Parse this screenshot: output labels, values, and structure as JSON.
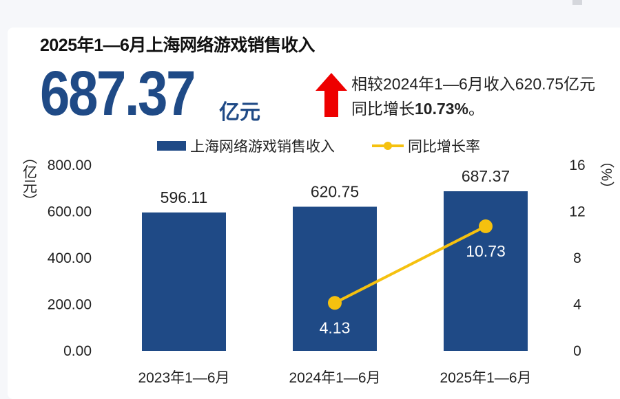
{
  "title": "2025年1—6月上海网络游戏销售收入",
  "headline": {
    "value": "687.37",
    "unit": "亿元"
  },
  "comparison": {
    "line1": "相较2024年1—6月收入620.75亿元",
    "line2_prefix": "同比增长",
    "line2_value": "10.73%",
    "line2_suffix": "。"
  },
  "colors": {
    "bar": "#1f4a86",
    "line": "#f5c10f",
    "arrow": "#ee0000"
  },
  "chart_data": {
    "type": "bar+line",
    "categories": [
      "2023年1—6月",
      "2024年1—6月",
      "2025年1—6月"
    ],
    "series": [
      {
        "name": "上海网络游戏销售收入",
        "type": "bar",
        "axis": "left",
        "values": [
          596.11,
          620.75,
          687.37
        ],
        "labels": [
          "596.11",
          "620.75",
          "687.37"
        ]
      },
      {
        "name": "同比增长率",
        "type": "line",
        "axis": "right",
        "values": [
          null,
          4.13,
          10.73
        ],
        "labels": [
          "",
          "4.13",
          "10.73"
        ]
      }
    ],
    "left_axis": {
      "label": "（亿元）",
      "range": [
        0,
        800
      ],
      "ticks": [
        "0.00",
        "200.00",
        "400.00",
        "600.00",
        "800.00"
      ]
    },
    "right_axis": {
      "label": "（%）",
      "range": [
        0,
        16
      ],
      "ticks": [
        "0",
        "4",
        "8",
        "12",
        "16"
      ]
    },
    "legend": "top-center",
    "grid": false
  }
}
